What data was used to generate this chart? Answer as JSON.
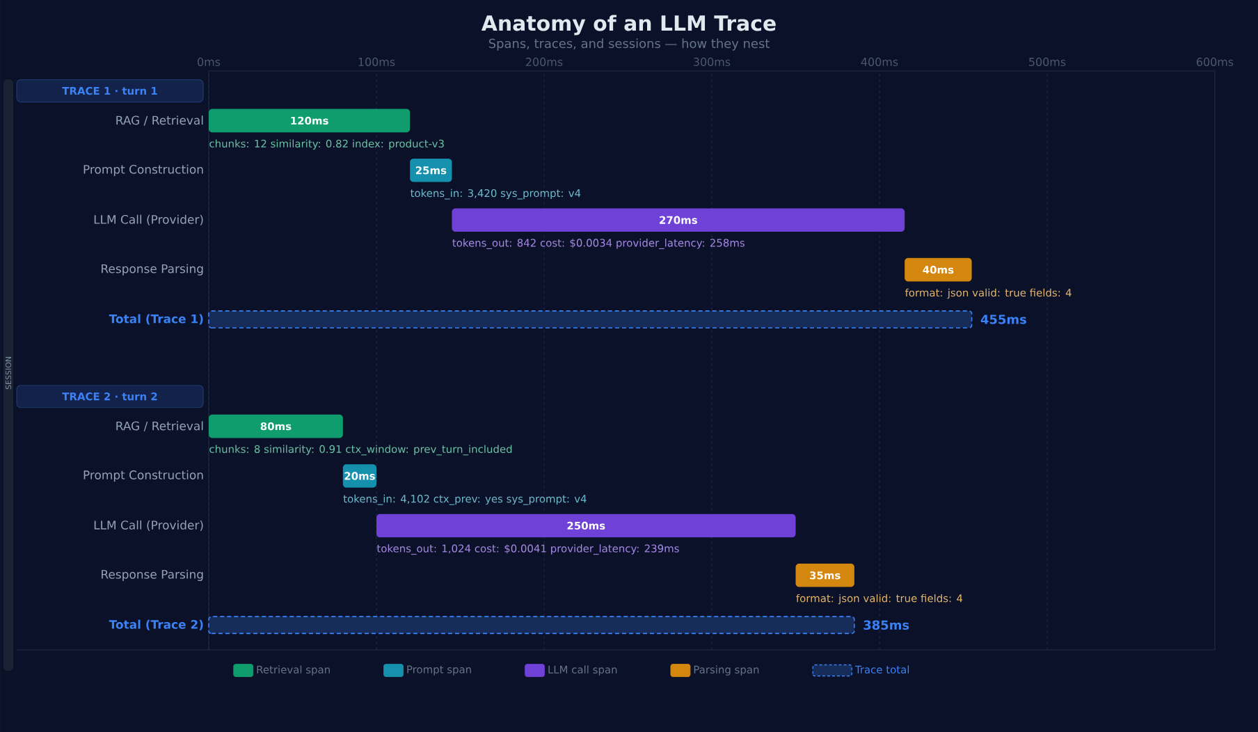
{
  "chart_data": {
    "type": "bar",
    "orientation": "horizontal",
    "title": "Anatomy of an LLM Trace",
    "subtitle": "Spans, traces, and sessions — how they nest",
    "categories": [
      "RAG / Retrieval",
      "Prompt Construction",
      "LLM Call (Provider)",
      "Response Parsing",
      "Total (Trace 1)",
      "RAG / Retrieval",
      "Prompt Construction",
      "LLM Call (Provider)",
      "Response Parsing",
      "Total (Trace 2)"
    ],
    "series": [
      {
        "name": "Retrieval span",
        "color": "#0f9d6e",
        "values": [
          120,
          null,
          null,
          null,
          null,
          80,
          null,
          null,
          null,
          null
        ],
        "base": [
          0,
          null,
          null,
          null,
          null,
          0,
          null,
          null,
          null,
          null
        ],
        "value_labels": [
          "120ms",
          null,
          null,
          null,
          null,
          "80ms",
          null,
          null,
          null,
          null
        ]
      },
      {
        "name": "Prompt span",
        "color": "#1590ad",
        "values": [
          null,
          25,
          null,
          null,
          null,
          null,
          20,
          null,
          null,
          null
        ],
        "base": [
          null,
          120,
          null,
          null,
          null,
          null,
          80,
          null,
          null,
          null
        ],
        "value_labels": [
          null,
          "25ms",
          null,
          null,
          null,
          null,
          "20ms",
          null,
          null,
          null
        ]
      },
      {
        "name": "LLM call span",
        "color": "#7041d6",
        "values": [
          null,
          null,
          270,
          null,
          null,
          null,
          null,
          250,
          null,
          null
        ],
        "base": [
          null,
          null,
          145,
          null,
          null,
          null,
          null,
          100,
          null,
          null
        ],
        "value_labels": [
          null,
          null,
          "270ms",
          null,
          null,
          null,
          null,
          "250ms",
          null,
          null
        ]
      },
      {
        "name": "Parsing span",
        "color": "#d4870f",
        "values": [
          null,
          null,
          null,
          40,
          null,
          null,
          null,
          null,
          35,
          null
        ],
        "base": [
          null,
          null,
          null,
          415,
          null,
          null,
          null,
          null,
          350,
          null
        ],
        "value_labels": [
          null,
          null,
          null,
          "40ms",
          null,
          null,
          null,
          null,
          "35ms",
          null
        ]
      },
      {
        "name": "Trace total",
        "color": "#3b82f6",
        "line_style": "dashed",
        "values": [
          null,
          null,
          null,
          null,
          455,
          null,
          null,
          null,
          null,
          385
        ],
        "base": [
          null,
          null,
          null,
          null,
          0,
          null,
          null,
          null,
          null,
          0
        ],
        "value_labels": [
          null,
          null,
          null,
          null,
          "455ms",
          null,
          null,
          null,
          null,
          "385ms"
        ]
      }
    ],
    "xlim": [
      0,
      600
    ],
    "xticks": [
      {
        "value": 0,
        "label": "0ms"
      },
      {
        "value": 100,
        "label": "100ms"
      },
      {
        "value": 200,
        "label": "200ms"
      },
      {
        "value": 300,
        "label": "300ms"
      },
      {
        "value": 400,
        "label": "400ms"
      },
      {
        "value": 500,
        "label": "500ms"
      },
      {
        "value": 600,
        "label": "600ms"
      }
    ],
    "grid": "x",
    "legend": "bottom",
    "annotations": [
      "TRACE 1 · turn 1",
      "TRACE 2 · turn 2",
      "chunks: 12 similarity: 0.82 index: product-v3",
      "tokens_in: 3,420 sys_prompt: v4",
      "tokens_out: 842 cost: $0.0034 provider_latency: 258ms",
      "format: json valid: true fields: 4",
      "chunks: 8 similarity: 0.91 ctx_window: prev_turn_included",
      "tokens_in: 4,102 ctx_prev: yes sys_prompt: v4",
      "tokens_out: 1,024 cost: $0.0041 provider_latency: 239ms",
      "format: json valid: true fields: 4",
      "SESSION"
    ]
  }
}
